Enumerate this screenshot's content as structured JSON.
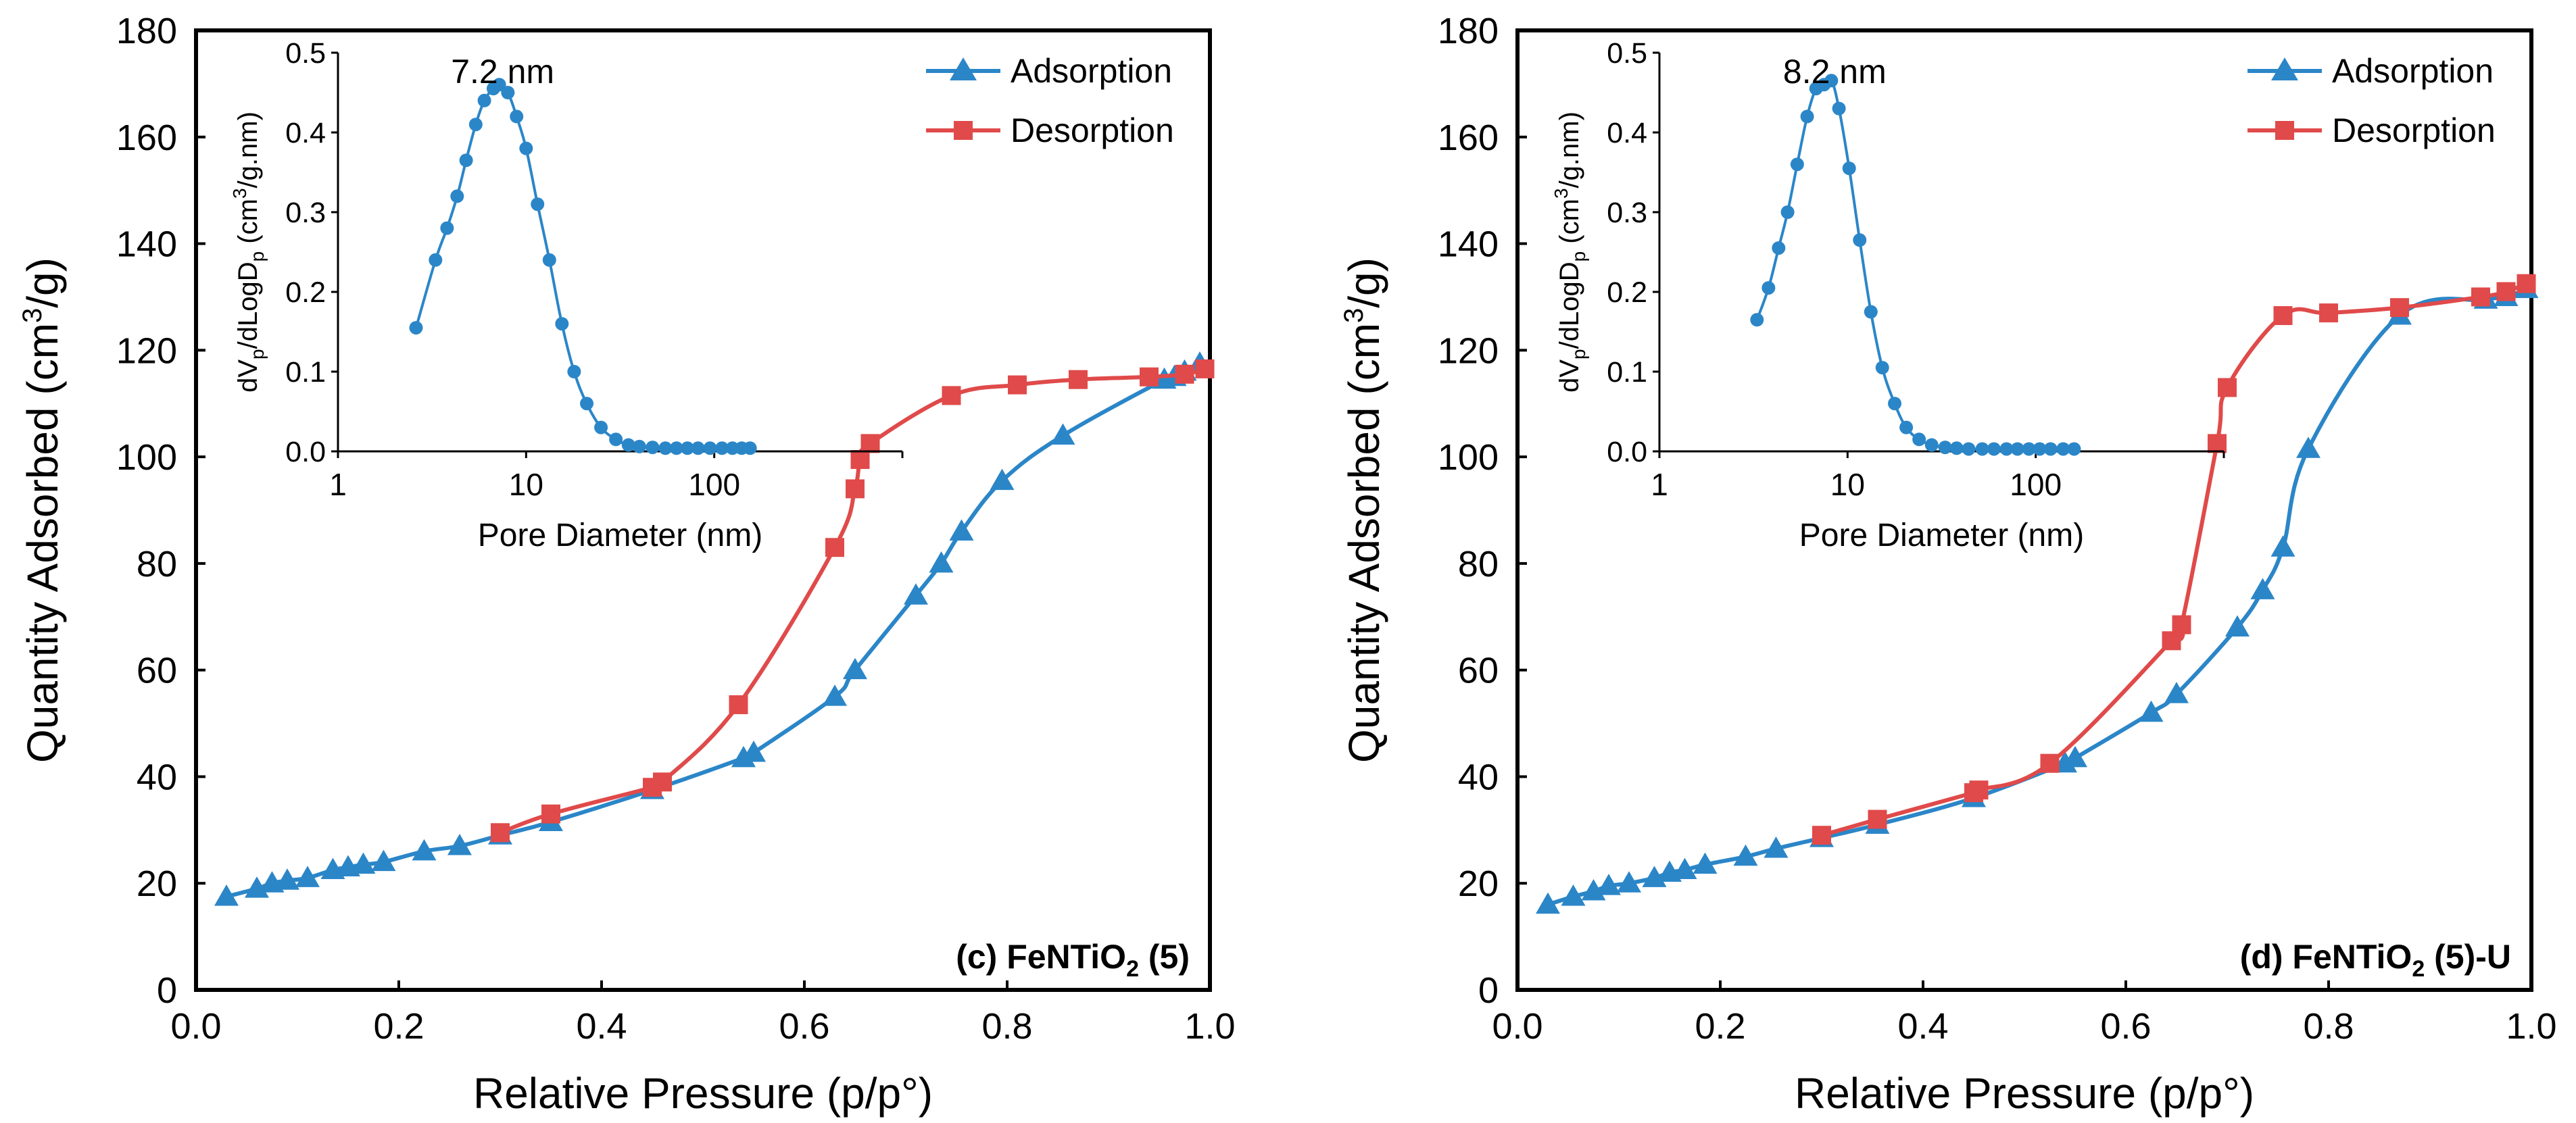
{
  "colors": {
    "adsorption": "#2b86c8",
    "desorption": "#e04a4a",
    "inset": "#2b86c8",
    "axis": "#000000"
  },
  "chart_data": [
    {
      "type": "line",
      "panel_label_prefix": "(c) FeNTiO",
      "panel_label_sub": "2",
      "panel_label_suffix": " (5)",
      "xlabel": "Relative Pressure (p/p°)",
      "ylabel_prefix": "Quantity Adsorbed (cm",
      "ylabel_sup": "3",
      "ylabel_suffix": "/g)",
      "xlim": [
        0,
        1.0
      ],
      "ylim": [
        0,
        180
      ],
      "x_ticks": [
        "0.0",
        "0.2",
        "0.4",
        "0.6",
        "0.8",
        "1.0"
      ],
      "y_ticks": [
        "0",
        "20",
        "40",
        "60",
        "80",
        "100",
        "120",
        "140",
        "160",
        "180"
      ],
      "legend": [
        "Adsorption",
        "Desorption"
      ],
      "series": [
        {
          "name": "Adsorption",
          "marker": "triangle",
          "x": [
            0.03,
            0.06,
            0.075,
            0.09,
            0.11,
            0.135,
            0.15,
            0.165,
            0.185,
            0.225,
            0.26,
            0.3,
            0.35,
            0.45,
            0.54,
            0.55,
            0.63,
            0.65,
            0.71,
            0.735,
            0.755,
            0.795,
            0.855,
            0.955,
            0.965,
            0.975,
            0.99
          ],
          "y": [
            17.5,
            19,
            20,
            20.5,
            21,
            22.5,
            23,
            23.5,
            24,
            26,
            27,
            29,
            31.5,
            37.5,
            43.5,
            44.5,
            55,
            60,
            74,
            80,
            86,
            95.5,
            104,
            114.5,
            115,
            116,
            117.5
          ]
        },
        {
          "name": "Desorption",
          "marker": "square",
          "x": [
            0.3,
            0.35,
            0.45,
            0.46,
            0.535,
            0.63,
            0.65,
            0.655,
            0.665,
            0.745,
            0.81,
            0.87,
            0.94,
            0.975,
            0.995
          ],
          "y": [
            29.5,
            33,
            38,
            39,
            53.5,
            83,
            94,
            99.5,
            102.5,
            111.5,
            113.5,
            114.5,
            115,
            115.5,
            116.5
          ]
        }
      ],
      "inset": {
        "type": "line",
        "xscale": "log",
        "xlim": [
          1,
          1000
        ],
        "ylim": [
          0,
          0.5
        ],
        "xlabel": "Pore Diameter (nm)",
        "ylabel_parts": [
          "dV",
          "p",
          "/dLogD",
          "p",
          " (cm",
          "3",
          "/g.nm)"
        ],
        "x_ticks": [
          "1",
          "10",
          "100"
        ],
        "y_ticks": [
          "0.0",
          "0.1",
          "0.2",
          "0.3",
          "0.4",
          "0.5"
        ],
        "annotation": "7.2 nm",
        "x": [
          2.6,
          3.3,
          3.8,
          4.3,
          4.8,
          5.4,
          6.0,
          6.7,
          7.2,
          8.0,
          8.9,
          10.0,
          11.5,
          13.3,
          15.5,
          18.0,
          21.0,
          25.0,
          30,
          35,
          40,
          47,
          55,
          63,
          72,
          82,
          95,
          110,
          125,
          140,
          155
        ],
        "y": [
          0.155,
          0.24,
          0.28,
          0.32,
          0.365,
          0.41,
          0.44,
          0.455,
          0.46,
          0.45,
          0.42,
          0.38,
          0.31,
          0.24,
          0.16,
          0.1,
          0.06,
          0.03,
          0.015,
          0.008,
          0.006,
          0.005,
          0.004,
          0.004,
          0.004,
          0.004,
          0.004,
          0.004,
          0.004,
          0.004,
          0.004
        ]
      }
    },
    {
      "type": "line",
      "panel_label_prefix": "(d) FeNTiO",
      "panel_label_sub": "2",
      "panel_label_suffix": " (5)-U",
      "xlabel": "Relative Pressure (p/p°)",
      "ylabel_prefix": "Quantity Adsorbed (cm",
      "ylabel_sup": "3",
      "ylabel_suffix": "/g)",
      "xlim": [
        0,
        1.0
      ],
      "ylim": [
        0,
        180
      ],
      "x_ticks": [
        "0.0",
        "0.2",
        "0.4",
        "0.6",
        "0.8",
        "1.0"
      ],
      "y_ticks": [
        "0",
        "20",
        "40",
        "60",
        "80",
        "100",
        "120",
        "140",
        "160",
        "180"
      ],
      "legend": [
        "Adsorption",
        "Desorption"
      ],
      "series": [
        {
          "name": "Adsorption",
          "marker": "triangle",
          "x": [
            0.03,
            0.055,
            0.075,
            0.09,
            0.11,
            0.135,
            0.15,
            0.165,
            0.185,
            0.225,
            0.255,
            0.3,
            0.355,
            0.45,
            0.54,
            0.55,
            0.625,
            0.65,
            0.71,
            0.735,
            0.755,
            0.78,
            0.87,
            0.955,
            0.975,
            0.995
          ],
          "y": [
            16,
            17.5,
            18.5,
            19.5,
            20,
            21,
            22,
            22.5,
            23.5,
            25,
            26.5,
            28.5,
            31,
            36,
            42.5,
            43.5,
            52,
            55.5,
            68,
            75,
            83,
            101.5,
            126.5,
            129.5,
            130,
            131.5
          ]
        },
        {
          "name": "Desorption",
          "marker": "square",
          "x": [
            0.3,
            0.355,
            0.45,
            0.455,
            0.525,
            0.645,
            0.655,
            0.69,
            0.7,
            0.755,
            0.8,
            0.87,
            0.95,
            0.975,
            0.995
          ],
          "y": [
            29,
            32,
            37,
            37.5,
            42.5,
            65.5,
            68.5,
            102.5,
            113,
            126.5,
            127,
            128,
            130,
            131,
            132.5
          ]
        }
      ],
      "inset": {
        "type": "line",
        "xscale": "log",
        "xlim": [
          1,
          1000
        ],
        "ylim": [
          0,
          0.5
        ],
        "xlabel": "Pore Diameter (nm)",
        "ylabel_parts": [
          "dV",
          "p",
          "/dLogD",
          "p",
          " (cm",
          "3",
          "/g.nm)"
        ],
        "x_ticks": [
          "1",
          "10",
          "100"
        ],
        "y_ticks": [
          "0.0",
          "0.1",
          "0.2",
          "0.3",
          "0.4",
          "0.5"
        ],
        "annotation": "8.2 nm",
        "x": [
          3.3,
          3.8,
          4.3,
          4.8,
          5.4,
          6.1,
          6.8,
          7.5,
          8.2,
          9.0,
          10.2,
          11.6,
          13.3,
          15.3,
          17.8,
          20.5,
          24,
          28,
          33,
          38,
          44,
          52,
          60,
          70,
          80,
          92,
          105,
          120,
          140,
          160
        ],
        "y": [
          0.165,
          0.205,
          0.255,
          0.3,
          0.36,
          0.42,
          0.455,
          0.46,
          0.465,
          0.43,
          0.355,
          0.265,
          0.175,
          0.105,
          0.06,
          0.03,
          0.015,
          0.008,
          0.005,
          0.004,
          0.003,
          0.003,
          0.003,
          0.003,
          0.003,
          0.003,
          0.003,
          0.003,
          0.003,
          0.003
        ]
      }
    }
  ]
}
